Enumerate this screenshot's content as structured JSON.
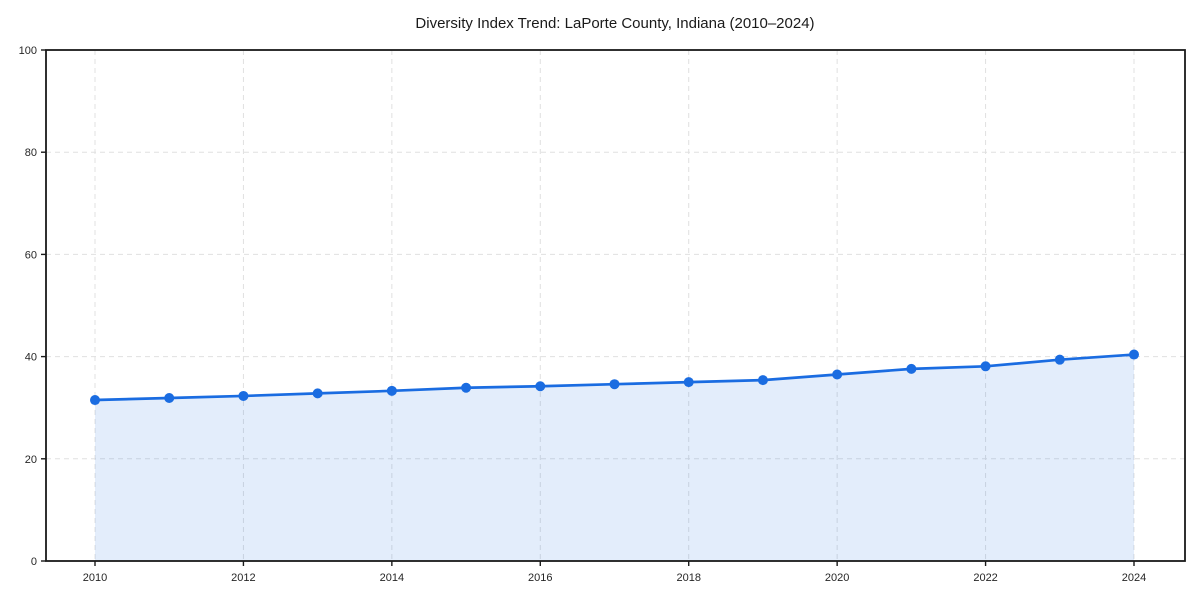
{
  "chart_data": {
    "type": "line",
    "title": "Diversity Index Trend: LaPorte County, Indiana (2010–2024)",
    "x": [
      2010,
      2011,
      2012,
      2013,
      2014,
      2015,
      2016,
      2017,
      2018,
      2019,
      2020,
      2021,
      2022,
      2023,
      2024
    ],
    "series": [
      {
        "name": "Diversity Index",
        "values": [
          31.5,
          31.9,
          32.3,
          32.8,
          33.3,
          33.9,
          34.2,
          34.6,
          35.0,
          35.4,
          36.5,
          37.6,
          38.1,
          39.4,
          40.4
        ],
        "color": "#1a6ce1",
        "marker": "circle",
        "area_fill": true,
        "fill_opacity": 0.12
      }
    ],
    "xlabel": "",
    "ylabel": "",
    "xlim": [
      2009.34,
      2024.69
    ],
    "ylim": [
      0,
      100
    ],
    "xticks": [
      2010,
      2012,
      2014,
      2016,
      2018,
      2020,
      2022,
      2024
    ],
    "yticks": [
      0,
      20,
      40,
      60,
      80,
      100
    ],
    "grid": true,
    "grid_style": "dashed",
    "legend_position": "none"
  },
  "style": {
    "background_color": "#ffffff",
    "grid_color": "#e0e0e0",
    "spine_color": "#1a1a1a",
    "title_color": "#1a1a1a",
    "tick_label_color": "#262626"
  }
}
